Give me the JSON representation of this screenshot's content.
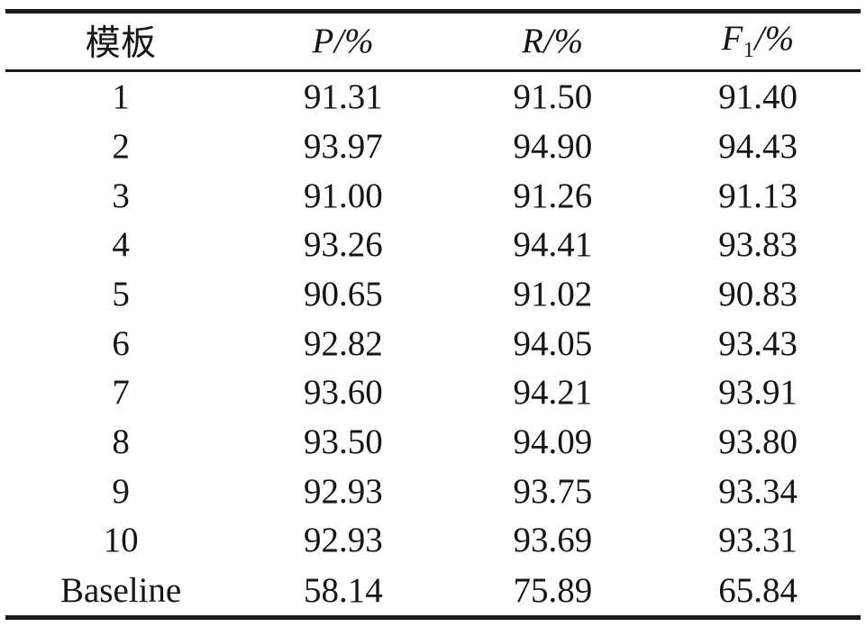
{
  "table": {
    "headers": [
      {
        "text": "模板"
      },
      {
        "variable": "P",
        "subscript": "",
        "suffix": "/%"
      },
      {
        "variable": "R",
        "subscript": "",
        "suffix": "/%"
      },
      {
        "variable": "F",
        "subscript": "1",
        "suffix": "/%"
      }
    ],
    "rows": [
      {
        "template": "1",
        "p": "91.31",
        "r": "91.50",
        "f1": "91.40"
      },
      {
        "template": "2",
        "p": "93.97",
        "r": "94.90",
        "f1": "94.43"
      },
      {
        "template": "3",
        "p": "91.00",
        "r": "91.26",
        "f1": "91.13"
      },
      {
        "template": "4",
        "p": "93.26",
        "r": "94.41",
        "f1": "93.83"
      },
      {
        "template": "5",
        "p": "90.65",
        "r": "91.02",
        "f1": "90.83"
      },
      {
        "template": "6",
        "p": "92.82",
        "r": "94.05",
        "f1": "93.43"
      },
      {
        "template": "7",
        "p": "93.60",
        "r": "94.21",
        "f1": "93.91"
      },
      {
        "template": "8",
        "p": "93.50",
        "r": "94.09",
        "f1": "93.80"
      },
      {
        "template": "9",
        "p": "92.93",
        "r": "93.75",
        "f1": "93.34"
      },
      {
        "template": "10",
        "p": "92.93",
        "r": "93.69",
        "f1": "93.31"
      },
      {
        "template": "Baseline",
        "p": "58.14",
        "r": "75.89",
        "f1": "65.84"
      }
    ],
    "colors": {
      "text": "#151515",
      "rule": "#1a1a1a",
      "background": "#ffffff"
    }
  }
}
